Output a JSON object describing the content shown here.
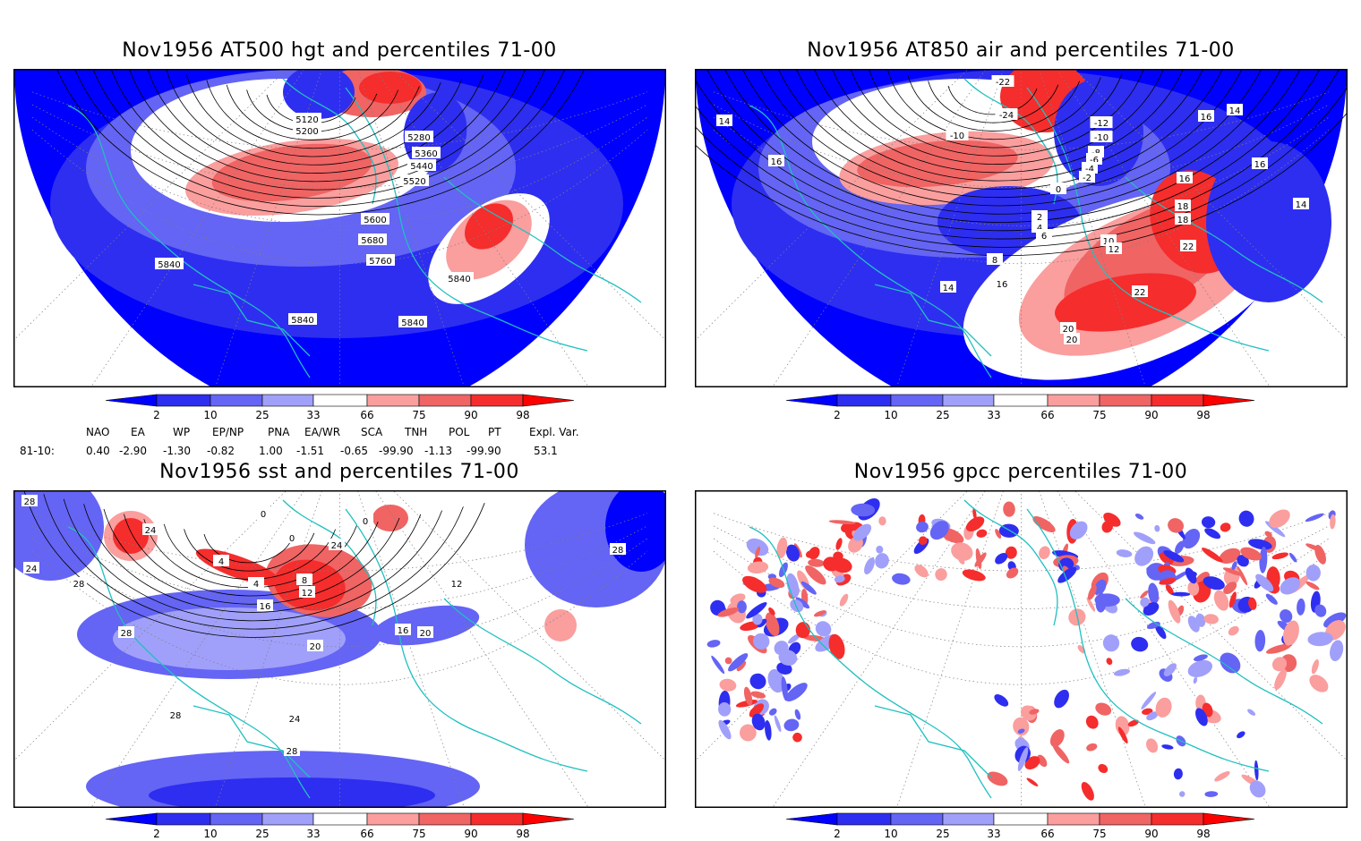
{
  "panels": [
    {
      "id": "hgt500",
      "title": "Nov1956 AT500 hgt and percentiles 71-00",
      "contour_labels": [
        "5120",
        "5200",
        "5280",
        "5360",
        "5440",
        "5520",
        "5600",
        "5680",
        "5760",
        "5840",
        "5840",
        "5840",
        "5840"
      ]
    },
    {
      "id": "air850",
      "title": "Nov1956 AT850 air and percentiles 71-00",
      "contour_labels": [
        "-22",
        "-24",
        "-12",
        "-10",
        "-10",
        "-8",
        "-6",
        "-4",
        "-2",
        "0",
        "2",
        "4",
        "6",
        "8",
        "10",
        "12",
        "14",
        "14",
        "14",
        "14",
        "16",
        "16",
        "16",
        "16",
        "16",
        "18",
        "18",
        "20",
        "20",
        "22",
        "22"
      ]
    },
    {
      "id": "sst",
      "title": "Nov1956 sst and percentiles 71-00",
      "contour_labels": [
        "28",
        "24",
        "24",
        "28",
        "28",
        "0",
        "0",
        "0",
        "4",
        "4",
        "8",
        "12",
        "16",
        "20",
        "24",
        "28",
        "28",
        "12",
        "16",
        "20",
        "24",
        "28"
      ]
    },
    {
      "id": "gpcc",
      "title": "Nov1956 gpcc percentiles 71-00",
      "contour_labels": []
    }
  ],
  "colorbar": {
    "ticks": [
      "2",
      "10",
      "25",
      "33",
      "66",
      "75",
      "90",
      "98"
    ],
    "colors": {
      "blue_extreme": "#0000ff",
      "blue_dark": "#2e2ef0",
      "blue_mid": "#6464f5",
      "blue_light": "#a0a0fa",
      "white": "#ffffff",
      "red_light": "#fa9e9e",
      "red_mid": "#f06464",
      "red_dark": "#f52d2d",
      "red_extreme": "#ff0000"
    }
  },
  "indices": {
    "headers": [
      "NAO",
      "EA",
      "WP",
      "EP/NP",
      "PNA",
      "EA/WR",
      "SCA",
      "TNH",
      "POL",
      "PT",
      "Expl. Var."
    ],
    "row_label": "81-10:",
    "values": [
      "0.40",
      "-2.90",
      "-1.30",
      "-0.82",
      "1.00",
      "-1.51",
      "-0.65",
      "-99.90",
      "-1.13",
      "-99.90",
      "53.1"
    ]
  },
  "map_colors": {
    "coast": "#20c0c0",
    "contour": "#000000",
    "grid": "#808080"
  }
}
